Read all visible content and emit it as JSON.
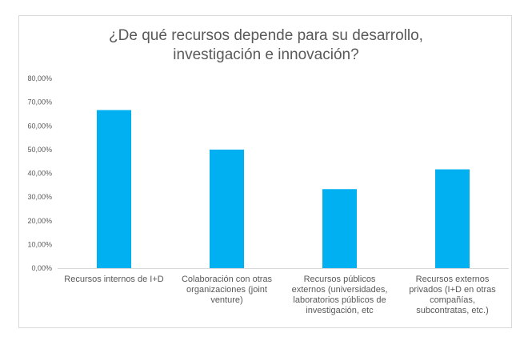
{
  "chart_data": {
    "type": "bar",
    "title_lines": [
      "¿De qué recursos depende para su desarrollo,",
      "investigación e innovación?"
    ],
    "categories": [
      [
        "Recursos internos de I+D"
      ],
      [
        "Colaboración con otras",
        "organizaciones (joint",
        "venture)"
      ],
      [
        "Recursos públicos",
        "externos (universidades,",
        "laboratorios públicos de",
        "investigación, etc"
      ],
      [
        "Recursos externos",
        "privados (I+D en otras",
        "compañías,",
        "subcontratas, etc.)"
      ]
    ],
    "values": [
      66.67,
      50.0,
      33.33,
      41.67
    ],
    "ylim": [
      0,
      80
    ],
    "yticks": [
      {
        "value": 0,
        "label": "0,00%"
      },
      {
        "value": 10,
        "label": "10,00%"
      },
      {
        "value": 20,
        "label": "20,00%"
      },
      {
        "value": 30,
        "label": "30,00%"
      },
      {
        "value": 40,
        "label": "40,00%"
      },
      {
        "value": 50,
        "label": "50,00%"
      },
      {
        "value": 60,
        "label": "60,00%"
      },
      {
        "value": 70,
        "label": "70,00%"
      },
      {
        "value": 80,
        "label": "80,00%"
      }
    ],
    "grid": false,
    "legend": "none",
    "bar_color": "#00b0f0",
    "axis_color": "#d9d9d9",
    "text_color": "#595959"
  }
}
